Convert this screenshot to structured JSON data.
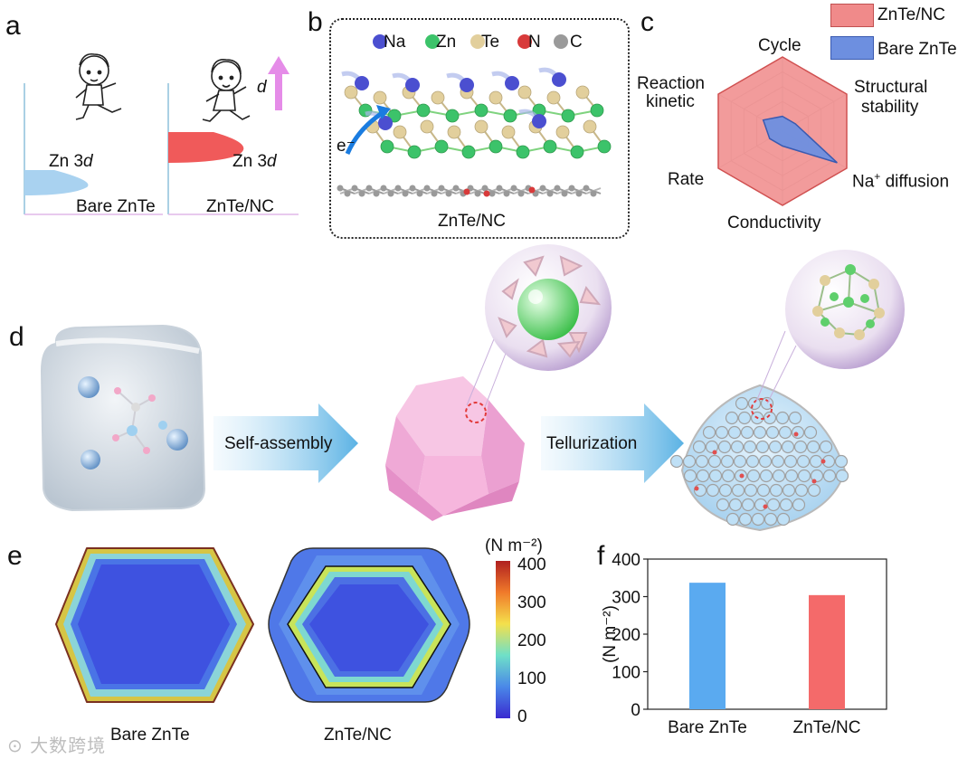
{
  "panels": {
    "a": {
      "label": "a",
      "left_state": "Bare ZnTe",
      "right_state": "ZnTe/NC",
      "band_left": "Zn 3",
      "band_right": "Zn 3",
      "band_italic": "d",
      "shift_label": "d",
      "colors": {
        "bare": "#a9d2f0",
        "nc": "#f05a5a",
        "arrow": "#e58ce8"
      }
    },
    "b": {
      "label": "b",
      "legend": [
        {
          "symbol": "Na",
          "color": "#4b4fd0"
        },
        {
          "symbol": "Zn",
          "color": "#3cc36a"
        },
        {
          "symbol": "Te",
          "color": "#e2cf9c"
        },
        {
          "symbol": "N",
          "color": "#d83a3a"
        },
        {
          "symbol": "C",
          "color": "#9a9a9a"
        }
      ],
      "electron": "e⁻",
      "caption": "ZnTe/NC"
    },
    "c": {
      "label": "c",
      "legend": [
        {
          "name": "ZnTe/NC",
          "color": "#f08a8a"
        },
        {
          "name": "Bare ZnTe",
          "color": "#6d8fe0"
        }
      ],
      "axes_text": {
        "cycle": "Cycle",
        "structural": "Structural",
        "stability": "stability",
        "na": "Na",
        "na_sup": "+",
        "diffusion": " diffusion",
        "conductivity": "Conductivity",
        "rate": "Rate",
        "reaction": "Reaction",
        "kinetic": "kinetic"
      }
    },
    "d": {
      "label": "d",
      "step1": "Self-assembly",
      "step2": "Tellurization"
    },
    "e": {
      "label": "e",
      "left_caption": "Bare ZnTe",
      "right_caption": "ZnTe/NC",
      "colorbar_unit": "(N m⁻²)",
      "colorbar_ticks": [
        "400",
        "300",
        "200",
        "100",
        "0"
      ]
    },
    "f": {
      "label": "f"
    }
  },
  "chart_data": {
    "type": "bar",
    "categories": [
      "Bare ZnTe",
      "ZnTe/NC"
    ],
    "values": [
      337,
      304
    ],
    "colors": [
      "#5aaaf0",
      "#f46a6a"
    ],
    "ylabel": "(N m⁻²)",
    "ylim": [
      0,
      400
    ],
    "yticks": [
      "0",
      "100",
      "200",
      "300",
      "400"
    ],
    "grid": false
  },
  "radar_data": {
    "axes": [
      "Cycle",
      "Structural stability",
      "Na+ diffusion",
      "Conductivity",
      "Rate",
      "Reaction kinetic"
    ],
    "series": [
      {
        "name": "ZnTe/NC",
        "values": [
          1,
          1,
          1,
          1,
          1,
          1
        ]
      },
      {
        "name": "Bare ZnTe",
        "values": [
          0.2,
          0.2,
          0.85,
          0.2,
          0.2,
          0.3
        ]
      }
    ],
    "range": [
      0,
      1
    ]
  },
  "watermark": "大数跨境"
}
